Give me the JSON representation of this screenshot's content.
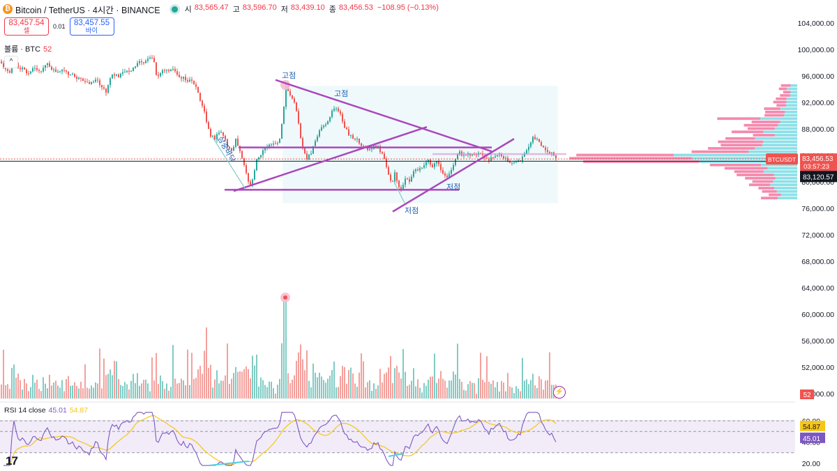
{
  "header": {
    "symbol": "Bitcoin / TetherUS · 4시간 · BINANCE",
    "open_label": "시",
    "open": "83,565.47",
    "high_label": "고",
    "high": "83,596.70",
    "low_label": "저",
    "low": "83,439.10",
    "close_label": "종",
    "close": "83,456.53",
    "change": "−108.95 (−0.13%)"
  },
  "trade": {
    "sell_price": "83,457.54",
    "sell_label": "셀",
    "spread": "0.01",
    "buy_price": "83,457.55",
    "buy_label": "바이"
  },
  "volume": {
    "label": "볼륨 · BTC",
    "value": "52"
  },
  "rsi": {
    "label": "RSI 14 close",
    "value": "45.01",
    "ma": "54.87"
  },
  "colors": {
    "up": "#26a69a",
    "down": "#ef5350",
    "drawing": "#ab47bc",
    "rsi": "#7e57c2",
    "rsi_ma": "#f5c518"
  },
  "chart_data": [
    {
      "type": "candlestick",
      "y_axis_labels": [
        "104,000.00",
        "100,000.00",
        "96,000.00",
        "92,000.00",
        "88,000.00",
        "84,000.00",
        "80,000.00",
        "76,000.00",
        "72,000.00",
        "68,000.00",
        "64,000.00",
        "60,000.00",
        "56,000.00",
        "52,000.00",
        "48,000.00"
      ],
      "ylim": [
        48000,
        105500
      ],
      "last_price": 83456.53,
      "last_price_tag": {
        "symbol": "BTCUSDT",
        "price": "83,456.53",
        "countdown": "03:57:23"
      },
      "horizontal_line": {
        "price": 83120.57,
        "label": "83,120.57"
      },
      "price_path": [
        [
          0,
          98200
        ],
        [
          8,
          97200
        ],
        [
          14,
          96500
        ],
        [
          20,
          98500
        ],
        [
          26,
          97000
        ],
        [
          32,
          97300
        ],
        [
          40,
          96000
        ],
        [
          48,
          97500
        ],
        [
          55,
          96500
        ],
        [
          62,
          97000
        ],
        [
          68,
          98000
        ],
        [
          75,
          97000
        ],
        [
          82,
          96500
        ],
        [
          90,
          96800
        ],
        [
          98,
          96200
        ],
        [
          106,
          96000
        ],
        [
          114,
          95600
        ],
        [
          122,
          95300
        ],
        [
          130,
          94800
        ],
        [
          138,
          95500
        ],
        [
          146,
          94300
        ],
        [
          152,
          93600
        ],
        [
          158,
          95800
        ],
        [
          164,
          96200
        ],
        [
          170,
          95800
        ],
        [
          176,
          96500
        ],
        [
          182,
          97000
        ],
        [
          188,
          96800
        ],
        [
          195,
          97500
        ],
        [
          202,
          98200
        ],
        [
          208,
          98000
        ],
        [
          214,
          99000
        ],
        [
          220,
          98800
        ],
        [
          225,
          95500
        ],
        [
          232,
          96800
        ],
        [
          240,
          97000
        ],
        [
          248,
          96800
        ],
        [
          256,
          96000
        ],
        [
          264,
          95600
        ],
        [
          272,
          95200
        ],
        [
          280,
          94800
        ],
        [
          286,
          92800
        ],
        [
          292,
          91000
        ],
        [
          297,
          88500
        ],
        [
          302,
          87000
        ],
        [
          308,
          86600
        ],
        [
          314,
          87600
        ],
        [
          320,
          87000
        ],
        [
          326,
          85400
        ],
        [
          332,
          84500
        ],
        [
          338,
          86300
        ],
        [
          344,
          84500
        ],
        [
          350,
          82500
        ],
        [
          356,
          79800
        ],
        [
          360,
          79200
        ],
        [
          364,
          81400
        ],
        [
          368,
          83300
        ],
        [
          373,
          84100
        ],
        [
          378,
          85000
        ],
        [
          384,
          85300
        ],
        [
          390,
          85800
        ],
        [
          396,
          85500
        ],
        [
          402,
          86600
        ],
        [
          407,
          91500
        ],
        [
          410,
          94800
        ],
        [
          413,
          93500
        ],
        [
          418,
          92800
        ],
        [
          424,
          91300
        ],
        [
          428,
          88800
        ],
        [
          432,
          86200
        ],
        [
          436,
          84400
        ],
        [
          440,
          83500
        ],
        [
          446,
          84400
        ],
        [
          452,
          86300
        ],
        [
          458,
          87800
        ],
        [
          464,
          88300
        ],
        [
          470,
          89000
        ],
        [
          476,
          90500
        ],
        [
          480,
          91500
        ],
        [
          484,
          91000
        ],
        [
          488,
          90200
        ],
        [
          492,
          88800
        ],
        [
          496,
          88000
        ],
        [
          500,
          87200
        ],
        [
          506,
          86600
        ],
        [
          512,
          86400
        ],
        [
          518,
          85600
        ],
        [
          524,
          85200
        ],
        [
          530,
          84900
        ],
        [
          536,
          85300
        ],
        [
          542,
          85200
        ],
        [
          548,
          84300
        ],
        [
          554,
          82300
        ],
        [
          558,
          80800
        ],
        [
          562,
          80000
        ],
        [
          566,
          81200
        ],
        [
          570,
          79800
        ],
        [
          574,
          78500
        ],
        [
          578,
          79600
        ],
        [
          582,
          80900
        ],
        [
          586,
          79700
        ],
        [
          590,
          80900
        ],
        [
          596,
          81800
        ],
        [
          602,
          82000
        ],
        [
          608,
          82700
        ],
        [
          614,
          83100
        ],
        [
          620,
          82400
        ],
        [
          626,
          83300
        ],
        [
          632,
          82000
        ],
        [
          636,
          81100
        ],
        [
          640,
          80600
        ],
        [
          646,
          81800
        ],
        [
          652,
          83200
        ],
        [
          658,
          84500
        ],
        [
          664,
          84000
        ],
        [
          670,
          84300
        ],
        [
          676,
          84000
        ],
        [
          682,
          83900
        ],
        [
          688,
          84300
        ],
        [
          694,
          83600
        ],
        [
          700,
          83300
        ],
        [
          706,
          83700
        ],
        [
          712,
          83900
        ],
        [
          718,
          84100
        ],
        [
          724,
          83500
        ],
        [
          730,
          82900
        ],
        [
          736,
          82600
        ],
        [
          742,
          83100
        ],
        [
          748,
          83500
        ],
        [
          754,
          84700
        ],
        [
          760,
          85800
        ],
        [
          764,
          86800
        ],
        [
          768,
          86400
        ],
        [
          772,
          86100
        ],
        [
          776,
          85600
        ],
        [
          780,
          84900
        ],
        [
          786,
          84300
        ],
        [
          792,
          84200
        ],
        [
          800,
          83450
        ]
      ],
      "annotations": [
        "고점",
        "고점",
        "저점",
        "저점",
        "삼중바닥"
      ],
      "series": [
        {
          "name": "Volume",
          "last": "52"
        }
      ]
    },
    {
      "type": "line",
      "title": "RSI 14 close",
      "y_axis_labels": [
        "60.00",
        "40.00",
        "20.00"
      ],
      "ylim": [
        16,
        68
      ],
      "bands": [
        70,
        50,
        30
      ],
      "series": [
        {
          "name": "RSI",
          "last": 45.01
        },
        {
          "name": "RSI MA",
          "last": 54.87
        }
      ]
    }
  ]
}
